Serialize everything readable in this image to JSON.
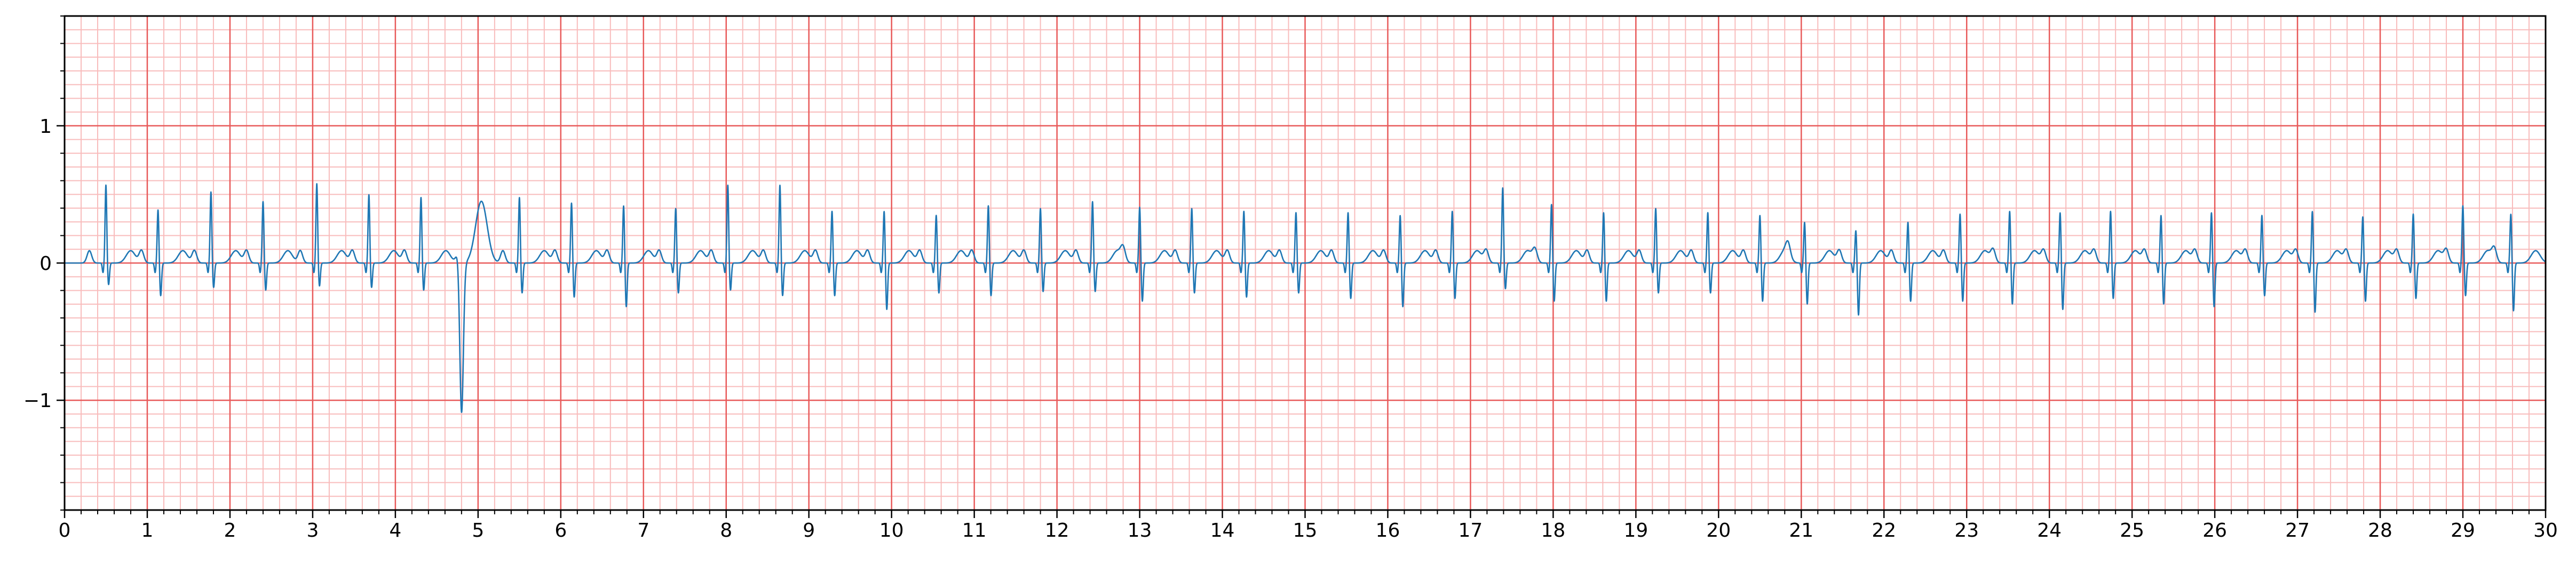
{
  "chart_data": {
    "type": "line",
    "title": "",
    "xlabel": "",
    "ylabel": "",
    "xlim": [
      0,
      30
    ],
    "ylim": [
      -1.8,
      1.8
    ],
    "xticks": [
      0,
      1,
      2,
      3,
      4,
      5,
      6,
      7,
      8,
      9,
      10,
      11,
      12,
      13,
      14,
      15,
      16,
      17,
      18,
      19,
      20,
      21,
      22,
      23,
      24,
      25,
      26,
      27,
      28,
      29,
      30
    ],
    "xtick_labels": [
      "0",
      "1",
      "2",
      "3",
      "4",
      "5",
      "6",
      "7",
      "8",
      "9",
      "10",
      "11",
      "12",
      "13",
      "14",
      "15",
      "16",
      "17",
      "18",
      "19",
      "20",
      "21",
      "22",
      "23",
      "24",
      "25",
      "26",
      "27",
      "28",
      "29",
      "30"
    ],
    "yticks": [
      -1,
      0,
      1
    ],
    "ytick_labels": [
      "−1",
      "0",
      "1"
    ],
    "grid": {
      "major": true,
      "major_color": "#e85a5a",
      "major_step_x": 1,
      "major_step_y": 1,
      "minor": true,
      "minor_color": "#f8bcbc",
      "minor_step_x": 0.2,
      "minor_step_y": 0.1
    },
    "series": [
      {
        "color": "#1f77b4",
        "beats": [
          {
            "t": 0.5,
            "r": 0.57,
            "s": -0.16
          },
          {
            "t": 1.13,
            "r": 0.39,
            "s": -0.24
          },
          {
            "t": 1.77,
            "r": 0.52,
            "s": -0.18
          },
          {
            "t": 2.4,
            "r": 0.45,
            "s": -0.2
          },
          {
            "t": 3.05,
            "r": 0.58,
            "s": -0.17
          },
          {
            "t": 3.68,
            "r": 0.5,
            "s": -0.18
          },
          {
            "t": 4.31,
            "r": 0.48,
            "s": -0.2
          },
          {
            "t": 4.8,
            "r": -1.15,
            "s": 0.45,
            "pvc": true
          },
          {
            "t": 5.5,
            "r": 0.48,
            "s": -0.22
          },
          {
            "t": 6.13,
            "r": 0.44,
            "s": -0.25
          },
          {
            "t": 6.76,
            "r": 0.42,
            "s": -0.32
          },
          {
            "t": 7.39,
            "r": 0.4,
            "s": -0.22
          },
          {
            "t": 8.02,
            "r": 0.57,
            "s": -0.2
          },
          {
            "t": 8.65,
            "r": 0.57,
            "s": -0.24
          },
          {
            "t": 9.28,
            "r": 0.38,
            "s": -0.24
          },
          {
            "t": 9.91,
            "r": 0.38,
            "s": -0.34
          },
          {
            "t": 10.54,
            "r": 0.35,
            "s": -0.22
          },
          {
            "t": 11.17,
            "r": 0.42,
            "s": -0.24
          },
          {
            "t": 11.8,
            "r": 0.4,
            "s": -0.21
          },
          {
            "t": 12.43,
            "r": 0.45,
            "s": -0.21
          },
          {
            "t": 13.0,
            "r": 0.41,
            "s": -0.28
          },
          {
            "t": 13.63,
            "r": 0.4,
            "s": -0.22
          },
          {
            "t": 14.26,
            "r": 0.38,
            "s": -0.25
          },
          {
            "t": 14.89,
            "r": 0.37,
            "s": -0.22
          },
          {
            "t": 15.52,
            "r": 0.37,
            "s": -0.26
          },
          {
            "t": 16.15,
            "r": 0.35,
            "s": -0.32
          },
          {
            "t": 16.78,
            "r": 0.38,
            "s": -0.26
          },
          {
            "t": 17.39,
            "r": 0.55,
            "s": -0.19
          },
          {
            "t": 17.98,
            "r": 0.43,
            "s": -0.28
          },
          {
            "t": 18.61,
            "r": 0.37,
            "s": -0.28
          },
          {
            "t": 19.24,
            "r": 0.4,
            "s": -0.22
          },
          {
            "t": 19.87,
            "r": 0.37,
            "s": -0.22
          },
          {
            "t": 20.5,
            "r": 0.35,
            "s": -0.28
          },
          {
            "t": 21.04,
            "r": 0.3,
            "s": -0.3
          },
          {
            "t": 21.66,
            "r": 0.24,
            "s": -0.38
          },
          {
            "t": 22.29,
            "r": 0.3,
            "s": -0.28
          },
          {
            "t": 22.92,
            "r": 0.36,
            "s": -0.28
          },
          {
            "t": 23.52,
            "r": 0.38,
            "s": -0.3
          },
          {
            "t": 24.13,
            "r": 0.37,
            "s": -0.34
          },
          {
            "t": 24.74,
            "r": 0.38,
            "s": -0.26
          },
          {
            "t": 25.35,
            "r": 0.35,
            "s": -0.3
          },
          {
            "t": 25.96,
            "r": 0.37,
            "s": -0.32
          },
          {
            "t": 26.57,
            "r": 0.35,
            "s": -0.24
          },
          {
            "t": 27.18,
            "r": 0.38,
            "s": -0.36
          },
          {
            "t": 27.79,
            "r": 0.34,
            "s": -0.28
          },
          {
            "t": 28.4,
            "r": 0.36,
            "s": -0.26
          },
          {
            "t": 29.0,
            "r": 0.42,
            "s": -0.24
          },
          {
            "t": 29.58,
            "r": 0.36,
            "s": -0.35
          }
        ]
      }
    ]
  }
}
